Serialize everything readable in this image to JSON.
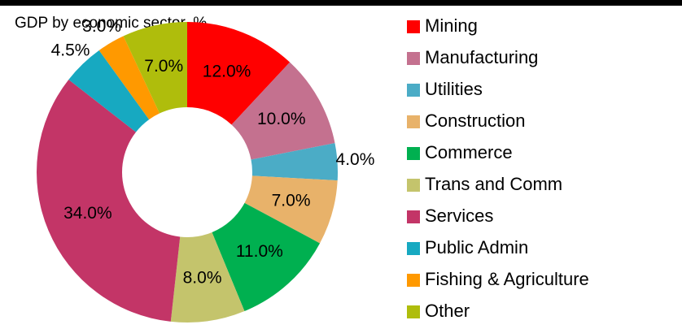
{
  "chart_data": {
    "type": "donut",
    "title": "GDP by economic sector, %",
    "categories": [
      "Mining",
      "Manufacturing",
      "Utilities",
      "Construction",
      "Commerce",
      "Trans and Comm",
      "Services",
      "Public Admin",
      "Fishing & Agriculture",
      "Other"
    ],
    "values": [
      12,
      10,
      4,
      7,
      11,
      8,
      34,
      4.5,
      3,
      7
    ],
    "value_labels": [
      "12.0%",
      "10.0%",
      "4.0%",
      "7.0%",
      "11.0%",
      "8.0%",
      "34.0%",
      "4.5%",
      "3.0%",
      "7.0%"
    ],
    "colors": [
      "#ff0000",
      "#c4718f",
      "#4bacc6",
      "#e8b26a",
      "#00b050",
      "#c4c46c",
      "#c33567",
      "#17a9c1",
      "#ff9900",
      "#afbd0c"
    ],
    "legend": "right"
  }
}
